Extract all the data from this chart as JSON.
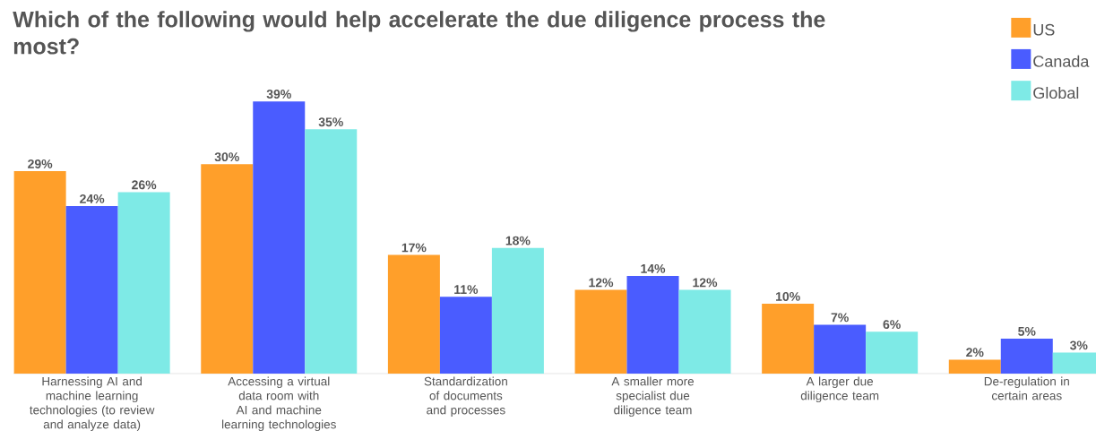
{
  "chart_data": {
    "type": "bar",
    "title": "Which of the following would help accelerate the due diligence process the most?",
    "categories": [
      "Harnessing AI and machine learning technologies (to review and analyze data)",
      "Accessing a virtual data room with AI and machine learning technologies",
      "Standardization of documents and processes",
      "A smaller more specialist due diligence team",
      "A larger due diligence team",
      "De-regulation in certain areas"
    ],
    "series": [
      {
        "name": "US",
        "color": "#ff9f2a",
        "values": [
          29,
          30,
          17,
          12,
          10,
          2
        ],
        "value_labels": [
          "29%",
          "30%",
          "17%",
          "12%",
          "10%",
          "2%"
        ]
      },
      {
        "name": "Canada",
        "color": "#4a5cff",
        "values": [
          24,
          39,
          11,
          14,
          7,
          5
        ],
        "value_labels": [
          "24%",
          "39%",
          "11%",
          "14%",
          "7%",
          "5%"
        ]
      },
      {
        "name": "Global",
        "color": "#7eeae6",
        "values": [
          26,
          35,
          18,
          12,
          6,
          3
        ],
        "value_labels": [
          "26%",
          "35%",
          "18%",
          "12%",
          "6%",
          "3%"
        ]
      }
    ],
    "legend": "top right"
  }
}
